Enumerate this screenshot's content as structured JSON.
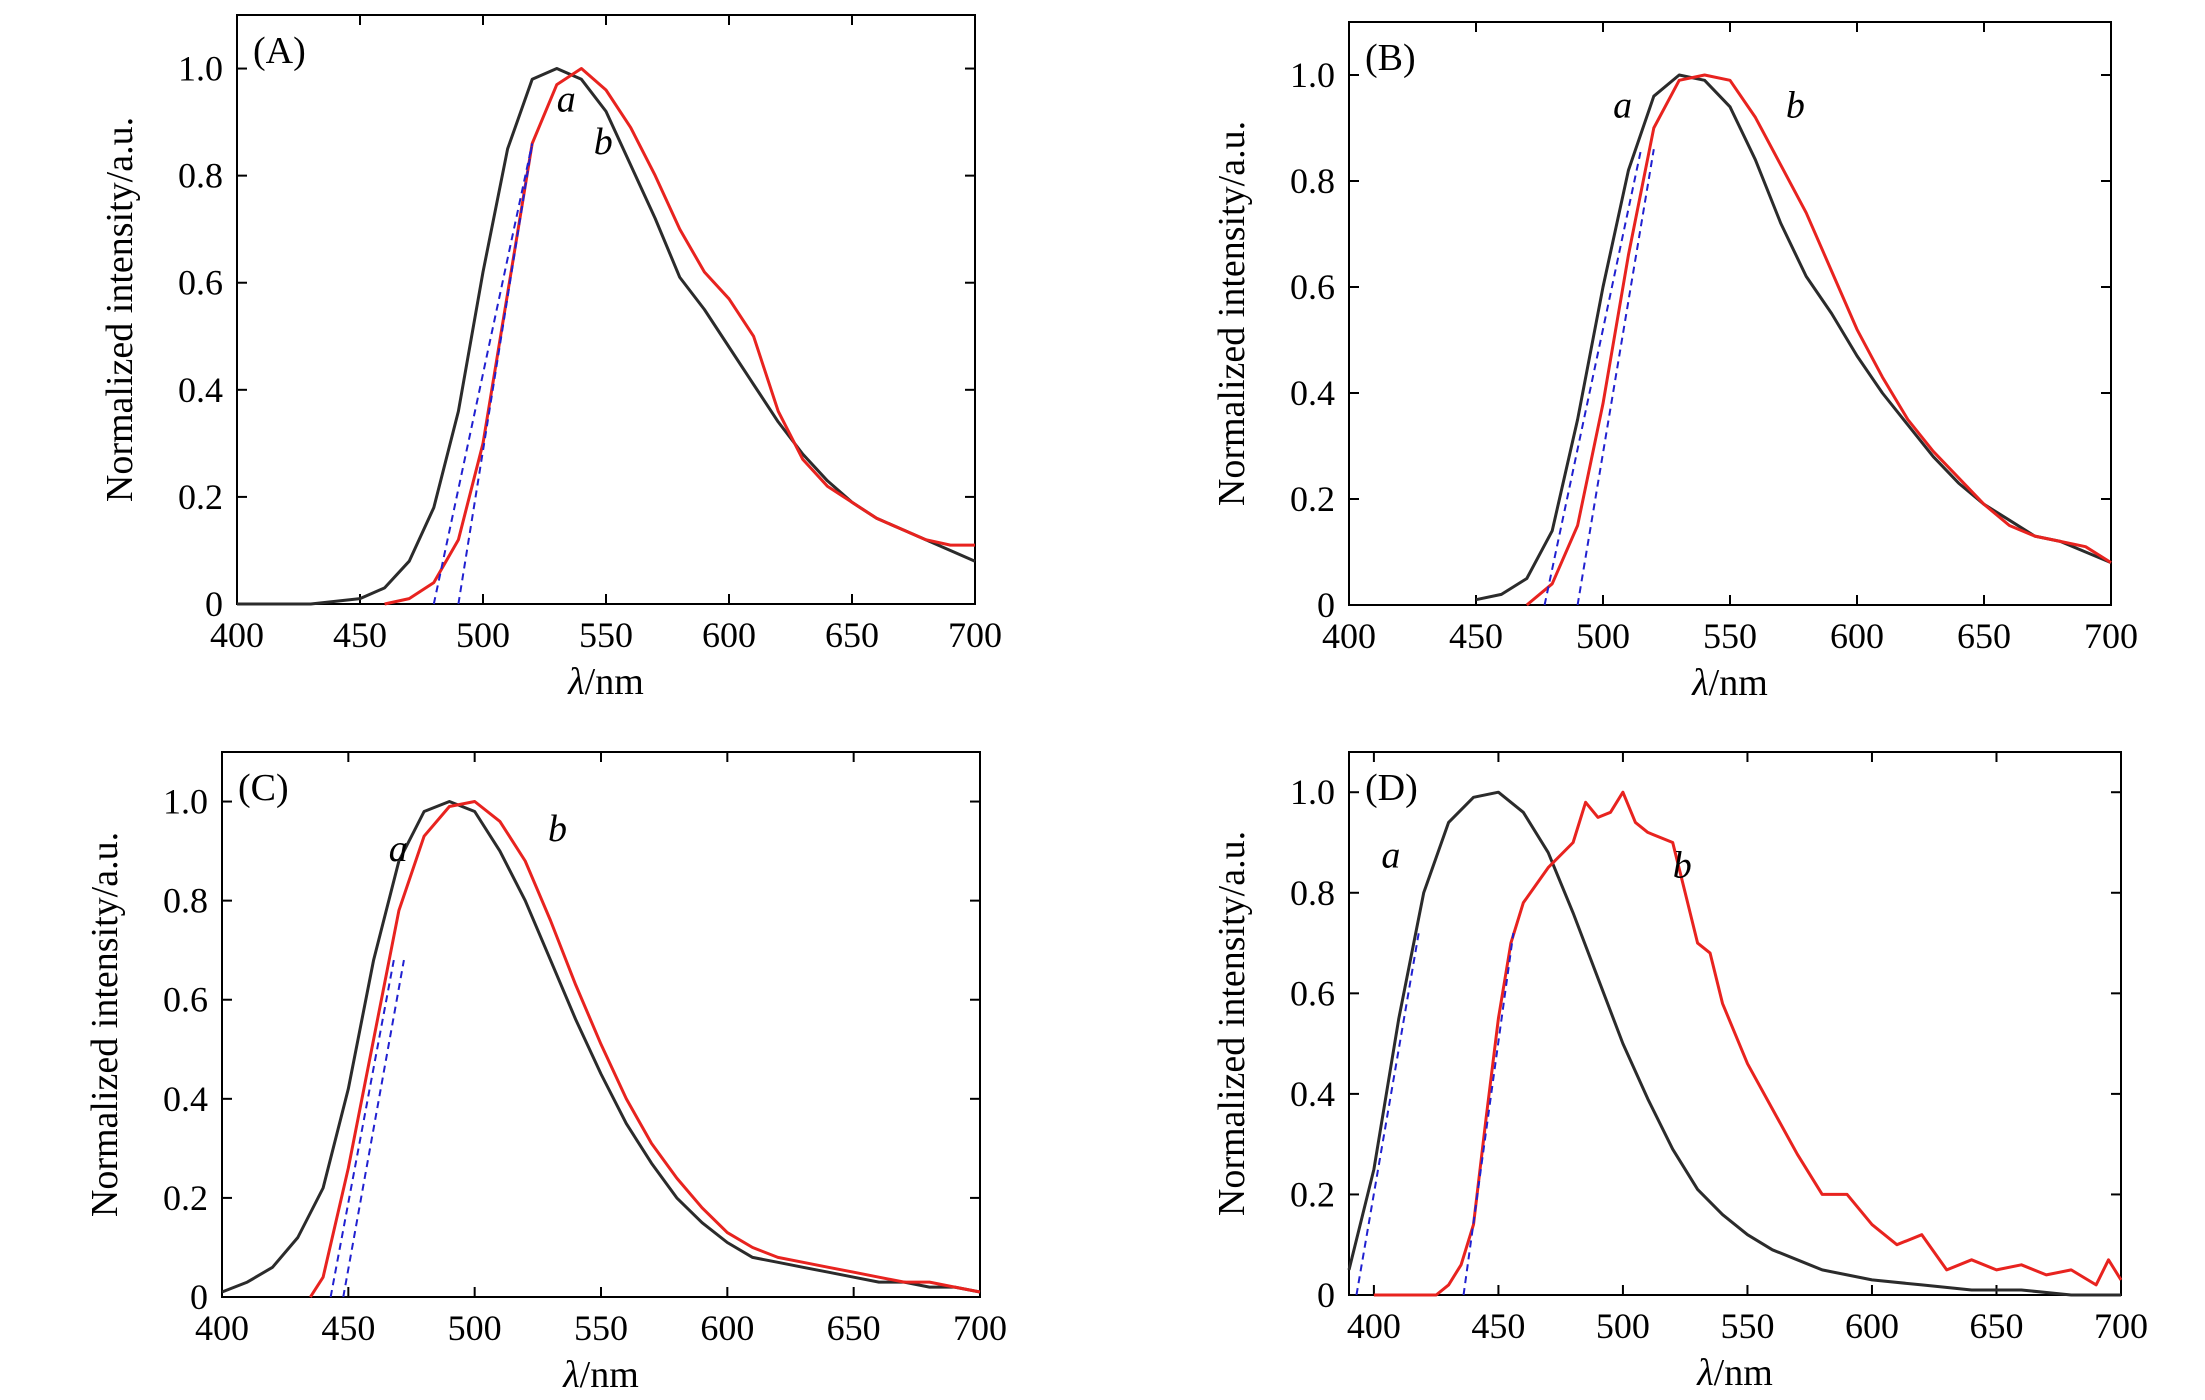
{
  "colors": {
    "series_a": "#2b2b2b",
    "series_b": "#e8231f",
    "tangent": "#2020d0",
    "axes": "#000000"
  },
  "chart_data": [
    {
      "type": "line",
      "title": "(A)",
      "xlabel_lambda": "λ",
      "xlabel_unit": "/nm",
      "ylabel": "Normalized intensity/a.u.",
      "xlim": [
        400,
        700
      ],
      "ylim": [
        0,
        1.1
      ],
      "xticks": [
        400,
        450,
        500,
        550,
        600,
        650,
        700
      ],
      "yticks": [
        0,
        0.2,
        0.4,
        0.6,
        0.8,
        1.0
      ],
      "ytick_labels": [
        "0",
        "0.2",
        "0.4",
        "0.6",
        "0.8",
        "1.0"
      ],
      "series": [
        {
          "name": "a",
          "x": [
            400,
            430,
            450,
            460,
            470,
            480,
            490,
            500,
            510,
            520,
            530,
            540,
            550,
            560,
            570,
            580,
            590,
            600,
            610,
            620,
            630,
            640,
            650,
            660,
            670,
            680,
            690,
            700
          ],
          "values": [
            0.0,
            0.0,
            0.01,
            0.03,
            0.08,
            0.18,
            0.36,
            0.62,
            0.85,
            0.98,
            1.0,
            0.98,
            0.92,
            0.82,
            0.72,
            0.61,
            0.55,
            0.48,
            0.41,
            0.34,
            0.28,
            0.23,
            0.19,
            0.16,
            0.14,
            0.12,
            0.1,
            0.08
          ]
        },
        {
          "name": "b",
          "x": [
            460,
            470,
            480,
            490,
            500,
            510,
            520,
            530,
            540,
            550,
            560,
            570,
            580,
            590,
            600,
            610,
            620,
            630,
            640,
            650,
            660,
            670,
            680,
            690,
            700
          ],
          "values": [
            0.0,
            0.01,
            0.04,
            0.12,
            0.3,
            0.58,
            0.86,
            0.97,
            1.0,
            0.96,
            0.89,
            0.8,
            0.7,
            0.62,
            0.57,
            0.5,
            0.36,
            0.27,
            0.22,
            0.19,
            0.16,
            0.14,
            0.12,
            0.11,
            0.11
          ]
        }
      ],
      "tangents": [
        {
          "x": [
            480,
            520
          ],
          "y": [
            0.0,
            0.86
          ]
        },
        {
          "x": [
            490,
            520
          ],
          "y": [
            0.0,
            0.86
          ]
        }
      ],
      "curve_labels": [
        {
          "text": "a",
          "x": 530,
          "y": 0.92
        },
        {
          "text": "b",
          "x": 545,
          "y": 0.84
        }
      ]
    },
    {
      "type": "line",
      "title": "(B)",
      "xlabel_lambda": "λ",
      "xlabel_unit": "/nm",
      "ylabel": "Normalized intensity/a.u.",
      "xlim": [
        400,
        700
      ],
      "ylim": [
        0,
        1.1
      ],
      "xticks": [
        400,
        450,
        500,
        550,
        600,
        650,
        700
      ],
      "yticks": [
        0,
        0.2,
        0.4,
        0.6,
        0.8,
        1.0
      ],
      "ytick_labels": [
        "0",
        "0.2",
        "0.4",
        "0.6",
        "0.8",
        "1.0"
      ],
      "series": [
        {
          "name": "a",
          "x": [
            450,
            460,
            470,
            480,
            490,
            500,
            510,
            520,
            530,
            540,
            550,
            560,
            570,
            580,
            590,
            600,
            610,
            620,
            630,
            640,
            650,
            660,
            670,
            680,
            690,
            700
          ],
          "values": [
            0.01,
            0.02,
            0.05,
            0.14,
            0.35,
            0.6,
            0.82,
            0.96,
            1.0,
            0.99,
            0.94,
            0.84,
            0.72,
            0.62,
            0.55,
            0.47,
            0.4,
            0.34,
            0.28,
            0.23,
            0.19,
            0.16,
            0.13,
            0.12,
            0.1,
            0.08
          ]
        },
        {
          "name": "b",
          "x": [
            470,
            480,
            490,
            500,
            510,
            520,
            530,
            540,
            550,
            560,
            570,
            580,
            590,
            600,
            610,
            620,
            630,
            640,
            650,
            660,
            670,
            680,
            690,
            700
          ],
          "values": [
            0.0,
            0.04,
            0.15,
            0.38,
            0.66,
            0.9,
            0.99,
            1.0,
            0.99,
            0.92,
            0.83,
            0.74,
            0.63,
            0.52,
            0.43,
            0.35,
            0.29,
            0.24,
            0.19,
            0.15,
            0.13,
            0.12,
            0.11,
            0.08
          ]
        }
      ],
      "tangents": [
        {
          "x": [
            477,
            515
          ],
          "y": [
            0.0,
            0.86
          ]
        },
        {
          "x": [
            490,
            520
          ],
          "y": [
            0.0,
            0.86
          ]
        }
      ],
      "curve_labels": [
        {
          "text": "a",
          "x": 504,
          "y": 0.92
        },
        {
          "text": "b",
          "x": 572,
          "y": 0.92
        }
      ]
    },
    {
      "type": "line",
      "title": "(C)",
      "xlabel_lambda": "λ",
      "xlabel_unit": "/nm",
      "ylabel": "Normalized intensity/a.u.",
      "xlim": [
        400,
        700
      ],
      "ylim": [
        0,
        1.1
      ],
      "xticks": [
        400,
        450,
        500,
        550,
        600,
        650,
        700
      ],
      "yticks": [
        0,
        0.2,
        0.4,
        0.6,
        0.8,
        1.0
      ],
      "ytick_labels": [
        "0",
        "0.2",
        "0.4",
        "0.6",
        "0.8",
        "1.0"
      ],
      "series": [
        {
          "name": "a",
          "x": [
            400,
            410,
            420,
            430,
            440,
            450,
            460,
            470,
            480,
            490,
            500,
            510,
            520,
            530,
            540,
            550,
            560,
            570,
            580,
            590,
            600,
            610,
            620,
            630,
            640,
            650,
            660,
            670,
            680,
            690,
            700
          ],
          "values": [
            0.01,
            0.03,
            0.06,
            0.12,
            0.22,
            0.42,
            0.68,
            0.88,
            0.98,
            1.0,
            0.98,
            0.9,
            0.8,
            0.68,
            0.56,
            0.45,
            0.35,
            0.27,
            0.2,
            0.15,
            0.11,
            0.08,
            0.07,
            0.06,
            0.05,
            0.04,
            0.03,
            0.03,
            0.02,
            0.02,
            0.01
          ]
        },
        {
          "name": "b",
          "x": [
            435,
            440,
            450,
            460,
            470,
            480,
            490,
            500,
            510,
            520,
            530,
            540,
            550,
            560,
            570,
            580,
            590,
            600,
            610,
            620,
            630,
            640,
            650,
            660,
            670,
            680,
            690,
            700
          ],
          "values": [
            0.0,
            0.04,
            0.26,
            0.52,
            0.78,
            0.93,
            0.99,
            1.0,
            0.96,
            0.88,
            0.76,
            0.63,
            0.51,
            0.4,
            0.31,
            0.24,
            0.18,
            0.13,
            0.1,
            0.08,
            0.07,
            0.06,
            0.05,
            0.04,
            0.03,
            0.03,
            0.02,
            0.01
          ]
        }
      ],
      "tangents": [
        {
          "x": [
            443,
            468
          ],
          "y": [
            0.0,
            0.68
          ]
        },
        {
          "x": [
            448,
            472
          ],
          "y": [
            0.0,
            0.68
          ]
        }
      ],
      "curve_labels": [
        {
          "text": "a",
          "x": 466,
          "y": 0.88
        },
        {
          "text": "b",
          "x": 529,
          "y": 0.92
        }
      ]
    },
    {
      "type": "line",
      "title": "(D)",
      "xlabel_lambda": "λ",
      "xlabel_unit": "/nm",
      "ylabel": "Normalized intensity/a.u.",
      "xlim": [
        390,
        700
      ],
      "ylim": [
        0,
        1.08
      ],
      "xticks": [
        400,
        450,
        500,
        550,
        600,
        650,
        700
      ],
      "yticks": [
        0,
        0.2,
        0.4,
        0.6,
        0.8,
        1.0
      ],
      "ytick_labels": [
        "0",
        "0.2",
        "0.4",
        "0.6",
        "0.8",
        "1.0"
      ],
      "series": [
        {
          "name": "a",
          "x": [
            390,
            400,
            410,
            420,
            430,
            440,
            450,
            460,
            470,
            480,
            490,
            500,
            510,
            520,
            530,
            540,
            550,
            560,
            570,
            580,
            590,
            600,
            620,
            640,
            660,
            680,
            700
          ],
          "values": [
            0.05,
            0.25,
            0.55,
            0.8,
            0.94,
            0.99,
            1.0,
            0.96,
            0.88,
            0.76,
            0.63,
            0.5,
            0.39,
            0.29,
            0.21,
            0.16,
            0.12,
            0.09,
            0.07,
            0.05,
            0.04,
            0.03,
            0.02,
            0.01,
            0.01,
            0.0,
            0.0
          ]
        },
        {
          "name": "b",
          "x": [
            400,
            410,
            420,
            425,
            430,
            435,
            440,
            445,
            450,
            455,
            460,
            470,
            480,
            485,
            490,
            495,
            500,
            505,
            510,
            520,
            525,
            530,
            535,
            540,
            545,
            550,
            560,
            570,
            580,
            590,
            600,
            610,
            620,
            630,
            640,
            650,
            660,
            670,
            680,
            690,
            695,
            700
          ],
          "values": [
            0.0,
            0.0,
            0.0,
            0.0,
            0.02,
            0.06,
            0.14,
            0.35,
            0.55,
            0.7,
            0.78,
            0.85,
            0.9,
            0.98,
            0.95,
            0.96,
            1.0,
            0.94,
            0.92,
            0.9,
            0.8,
            0.7,
            0.68,
            0.58,
            0.52,
            0.46,
            0.37,
            0.28,
            0.2,
            0.2,
            0.14,
            0.1,
            0.12,
            0.05,
            0.07,
            0.05,
            0.06,
            0.04,
            0.05,
            0.02,
            0.07,
            0.03
          ]
        }
      ],
      "tangents": [
        {
          "x": [
            393,
            418
          ],
          "y": [
            0.0,
            0.72
          ]
        },
        {
          "x": [
            436,
            456
          ],
          "y": [
            0.0,
            0.72
          ]
        }
      ],
      "curve_labels": [
        {
          "text": "a",
          "x": 403,
          "y": 0.85
        },
        {
          "text": "b",
          "x": 520,
          "y": 0.83
        }
      ]
    }
  ]
}
